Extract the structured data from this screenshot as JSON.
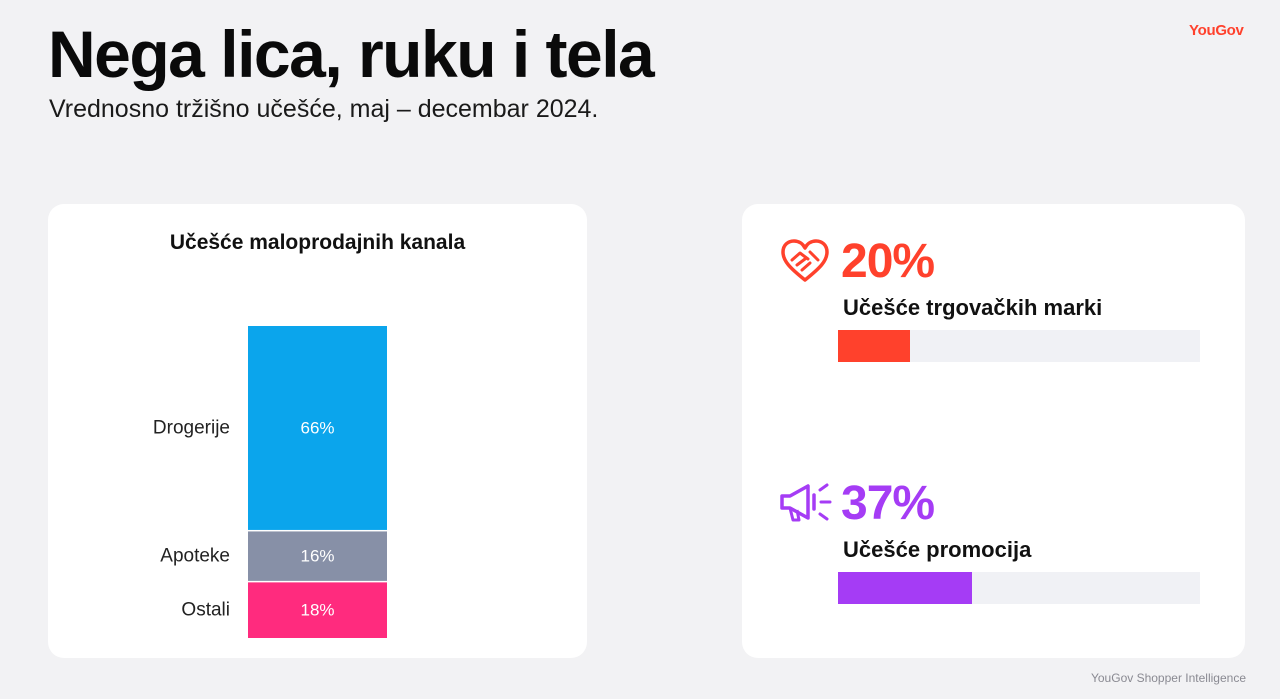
{
  "header": {
    "title": "Nega lica, ruku i tela",
    "subtitle": "Vrednosno tržišno učešće, maj – decembar 2024.",
    "brand": "YouGov"
  },
  "footer": {
    "source": "YouGov Shopper Intelligence"
  },
  "chart_data": {
    "type": "bar",
    "stacked": true,
    "title": "Učešće maloprodajnih kanala",
    "categories": [
      "Drogerije",
      "Apoteke",
      "Ostali"
    ],
    "values": [
      66,
      16,
      18
    ],
    "value_labels": [
      "66%",
      "16%",
      "18%"
    ],
    "colors": [
      "#0ba5ec",
      "#8790a7",
      "#ff2b7e"
    ],
    "unit": "%"
  },
  "kpis": [
    {
      "value": "20%",
      "number": 20,
      "label": "Učešće trgovačkih marki",
      "color": "#ff412c",
      "icon": "heart-handshake-icon"
    },
    {
      "value": "37%",
      "number": 37,
      "label": "Učešće promocija",
      "color": "#a53cf5",
      "icon": "megaphone-icon"
    }
  ]
}
